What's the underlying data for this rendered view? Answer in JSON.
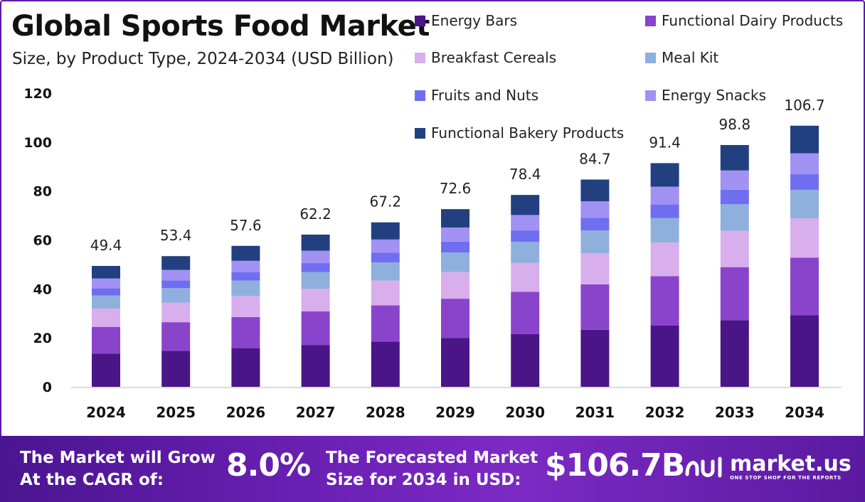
{
  "header": {
    "title": "Global Sports Food Market",
    "subtitle": "Size, by Product Type, 2024-2034 (USD Billion)"
  },
  "chart_data": {
    "type": "bar",
    "stacked": true,
    "categories": [
      "2024",
      "2025",
      "2026",
      "2027",
      "2028",
      "2029",
      "2030",
      "2031",
      "2032",
      "2033",
      "2034"
    ],
    "totals": [
      49.4,
      53.4,
      57.6,
      62.2,
      67.2,
      72.6,
      78.4,
      84.7,
      91.4,
      98.8,
      106.7
    ],
    "series": [
      {
        "name": "Energy Bars",
        "color": "#4a1587",
        "values": [
          13.6,
          14.7,
          15.8,
          17.1,
          18.5,
          20.0,
          21.6,
          23.3,
          25.1,
          27.2,
          29.3
        ]
      },
      {
        "name": "Functional Dairy Products",
        "color": "#8a44cc",
        "values": [
          10.9,
          11.7,
          12.7,
          13.7,
          14.8,
          16.0,
          17.2,
          18.6,
          20.1,
          21.7,
          23.5
        ]
      },
      {
        "name": "Breakfast Cereals",
        "color": "#d9aeec",
        "values": [
          7.4,
          8.0,
          8.6,
          9.3,
          10.1,
          10.9,
          11.8,
          12.7,
          13.7,
          14.8,
          16.0
        ]
      },
      {
        "name": "Meal Kit",
        "color": "#8fb0dc",
        "values": [
          5.4,
          5.9,
          6.3,
          6.8,
          7.4,
          8.0,
          8.6,
          9.3,
          10.1,
          10.9,
          11.7
        ]
      },
      {
        "name": "Fruits and Nuts",
        "color": "#6f6ef0",
        "values": [
          3.0,
          3.2,
          3.5,
          3.7,
          4.0,
          4.4,
          4.7,
          5.1,
          5.5,
          5.9,
          6.4
        ]
      },
      {
        "name": "Energy Snacks",
        "color": "#a191f3",
        "values": [
          4.0,
          4.3,
          4.6,
          5.0,
          5.4,
          5.8,
          6.3,
          6.8,
          7.3,
          7.9,
          8.5
        ]
      },
      {
        "name": "Functional Bakery Products",
        "color": "#22407f",
        "values": [
          5.1,
          5.6,
          6.1,
          6.6,
          7.0,
          7.5,
          8.2,
          8.9,
          9.6,
          10.4,
          11.3
        ]
      }
    ],
    "y_ticks": [
      "0",
      "20",
      "40",
      "60",
      "80",
      "100",
      "120"
    ],
    "ylim": [
      0,
      120
    ],
    "grid": false,
    "legend_position": "top-right"
  },
  "footer": {
    "cagr_line1": "The Market will Grow",
    "cagr_line2": "At the CAGR of:",
    "cagr_value": "8.0%",
    "forecast_line1": "The Forecasted Market",
    "forecast_line2": "Size for 2034 in USD:",
    "forecast_value": "$106.7B",
    "brand_name": "market.us",
    "brand_tagline": "ONE STOP SHOP FOR THE REPORTS"
  }
}
